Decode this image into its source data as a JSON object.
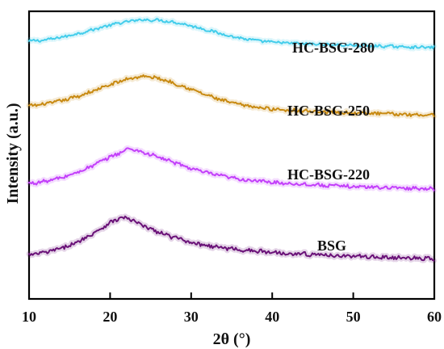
{
  "chart_data": {
    "type": "line",
    "title": "",
    "xlabel": "2θ (°)",
    "ylabel": "Intensity (a.u.)",
    "xlim": [
      10,
      60
    ],
    "xticks": [
      10,
      20,
      30,
      40,
      50,
      60
    ],
    "grid": false,
    "series": [
      {
        "name": "HC-BSG-280",
        "color": "#43CDEB",
        "points": [
          [
            10,
            0.96
          ],
          [
            12,
            1.02
          ],
          [
            14,
            1.18
          ],
          [
            16,
            1.38
          ],
          [
            18,
            1.62
          ],
          [
            20,
            1.86
          ],
          [
            22,
            2.05
          ],
          [
            24,
            2.16
          ],
          [
            26,
            2.14
          ],
          [
            28,
            2.02
          ],
          [
            30,
            1.82
          ],
          [
            32,
            1.58
          ],
          [
            34,
            1.34
          ],
          [
            36,
            1.13
          ],
          [
            38,
            0.99
          ],
          [
            40,
            0.9
          ],
          [
            42,
            0.85
          ],
          [
            44,
            0.81
          ],
          [
            46,
            0.78
          ],
          [
            48,
            0.75
          ],
          [
            50,
            0.72
          ],
          [
            52,
            0.69
          ],
          [
            54,
            0.67
          ],
          [
            56,
            0.64
          ],
          [
            58,
            0.62
          ],
          [
            60,
            0.59
          ]
        ]
      },
      {
        "name": "HC-BSG-250",
        "color": "#C88A12",
        "points": [
          [
            10,
            0.72
          ],
          [
            12,
            0.82
          ],
          [
            14,
            0.97
          ],
          [
            16,
            1.18
          ],
          [
            18,
            1.45
          ],
          [
            20,
            1.73
          ],
          [
            22,
            2.0
          ],
          [
            24,
            2.14
          ],
          [
            26,
            2.04
          ],
          [
            28,
            1.8
          ],
          [
            30,
            1.52
          ],
          [
            32,
            1.23
          ],
          [
            34,
            0.97
          ],
          [
            36,
            0.79
          ],
          [
            38,
            0.66
          ],
          [
            40,
            0.58
          ],
          [
            42,
            0.53
          ],
          [
            44,
            0.49
          ],
          [
            46,
            0.45
          ],
          [
            48,
            0.42
          ],
          [
            50,
            0.39
          ],
          [
            52,
            0.37
          ],
          [
            54,
            0.35
          ],
          [
            56,
            0.33
          ],
          [
            58,
            0.31
          ],
          [
            60,
            0.29
          ]
        ]
      },
      {
        "name": "HC-BSG-220",
        "color": "#C340FA",
        "points": [
          [
            10,
            0.56
          ],
          [
            12,
            0.66
          ],
          [
            14,
            0.82
          ],
          [
            16,
            1.06
          ],
          [
            18,
            1.38
          ],
          [
            20,
            1.74
          ],
          [
            22,
            2.05
          ],
          [
            22.5,
            2.12
          ],
          [
            24,
            1.95
          ],
          [
            26,
            1.73
          ],
          [
            28,
            1.48
          ],
          [
            30,
            1.23
          ],
          [
            32,
            1.03
          ],
          [
            34,
            0.88
          ],
          [
            36,
            0.76
          ],
          [
            38,
            0.68
          ],
          [
            40,
            0.62
          ],
          [
            42,
            0.57
          ],
          [
            44,
            0.53
          ],
          [
            46,
            0.49
          ],
          [
            48,
            0.46
          ],
          [
            50,
            0.43
          ],
          [
            52,
            0.41
          ],
          [
            54,
            0.39
          ],
          [
            56,
            0.37
          ],
          [
            58,
            0.35
          ],
          [
            60,
            0.33
          ]
        ]
      },
      {
        "name": "BSG",
        "color": "#6A1278",
        "points": [
          [
            10,
            0.32
          ],
          [
            12,
            0.42
          ],
          [
            14,
            0.58
          ],
          [
            16,
            0.82
          ],
          [
            18,
            1.18
          ],
          [
            20,
            1.58
          ],
          [
            21.5,
            1.78
          ],
          [
            22.5,
            1.7
          ],
          [
            24,
            1.46
          ],
          [
            26,
            1.2
          ],
          [
            28,
            0.99
          ],
          [
            30,
            0.82
          ],
          [
            32,
            0.69
          ],
          [
            34,
            0.6
          ],
          [
            36,
            0.53
          ],
          [
            38,
            0.47
          ],
          [
            40,
            0.43
          ],
          [
            42,
            0.39
          ],
          [
            44,
            0.36
          ],
          [
            46,
            0.33
          ],
          [
            48,
            0.3
          ],
          [
            50,
            0.28
          ],
          [
            52,
            0.25
          ],
          [
            54,
            0.23
          ],
          [
            56,
            0.21
          ],
          [
            58,
            0.19
          ],
          [
            60,
            0.17
          ]
        ]
      }
    ]
  }
}
